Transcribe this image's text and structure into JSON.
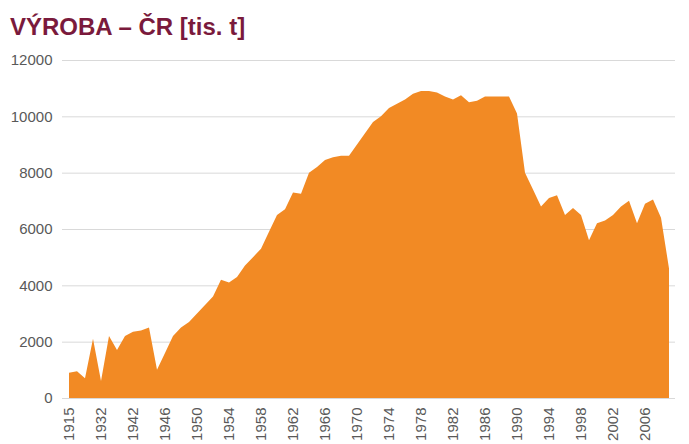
{
  "chart_data": {
    "type": "area",
    "title": "VÝROBA – ČR [tis. t]",
    "categories": [
      "1915",
      null,
      null,
      null,
      "1932",
      null,
      null,
      null,
      "1942",
      null,
      null,
      null,
      "1946",
      null,
      null,
      null,
      "1950",
      null,
      null,
      null,
      "1954",
      null,
      null,
      null,
      "1958",
      null,
      null,
      null,
      "1962",
      null,
      null,
      null,
      "1966",
      null,
      null,
      null,
      "1970",
      null,
      null,
      null,
      "1974",
      null,
      null,
      null,
      "1978",
      null,
      null,
      null,
      "1982",
      null,
      null,
      null,
      "1986",
      null,
      null,
      null,
      "1990",
      null,
      null,
      null,
      "1994",
      null,
      null,
      null,
      "1998",
      null,
      null,
      null,
      "2002",
      null,
      null,
      null,
      "2006",
      null,
      null,
      null
    ],
    "values": [
      900,
      950,
      700,
      2100,
      600,
      2200,
      1700,
      2200,
      2350,
      2400,
      2500,
      1000,
      1600,
      2200,
      2500,
      2700,
      3000,
      3300,
      3600,
      4200,
      4100,
      4300,
      4700,
      5000,
      5300,
      5900,
      6500,
      6700,
      7300,
      7250,
      8000,
      8200,
      8450,
      8550,
      8600,
      8600,
      9000,
      9400,
      9800,
      10000,
      10300,
      10450,
      10600,
      10800,
      10900,
      10900,
      10850,
      10700,
      10600,
      10750,
      10500,
      10550,
      10700,
      10700,
      10700,
      10700,
      10100,
      8000,
      7400,
      6800,
      7100,
      7200,
      6500,
      6750,
      6500,
      5600,
      6200,
      6300,
      6500,
      6800,
      7000,
      6200,
      6900,
      7050,
      6400,
      4600
    ],
    "color": "#f28a24",
    "ylim": [
      0,
      12000
    ],
    "yticks": [
      0,
      2000,
      4000,
      6000,
      8000,
      10000,
      12000
    ],
    "grid": true
  }
}
